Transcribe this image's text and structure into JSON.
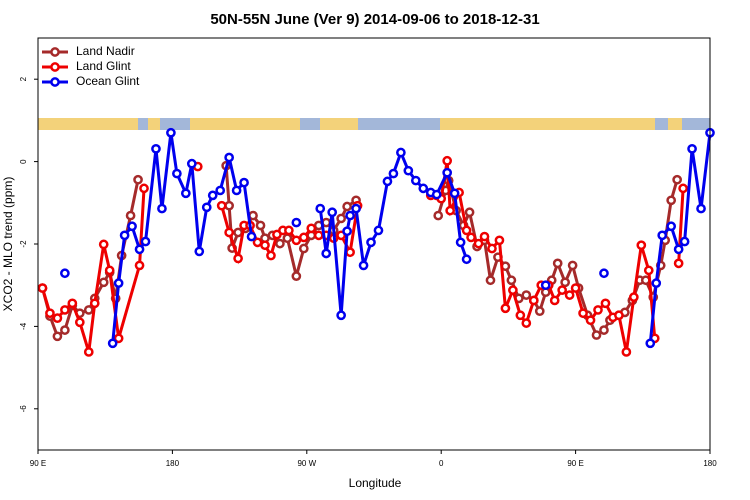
{
  "chart_data": {
    "type": "line",
    "title": "50N-55N June (Ver 9)   2014-09-06 to 2018-12-31",
    "x_label": "Longitude",
    "y_label": "XCO2 - MLO trend (ppm)",
    "xlim": [
      90,
      540
    ],
    "ylim": [
      -7,
      3
    ],
    "xticks": [
      {
        "value": 90,
        "label": "90 E"
      },
      {
        "value": 180,
        "label": "180"
      },
      {
        "value": 270,
        "label": "90 W"
      },
      {
        "value": 360,
        "label": "0"
      },
      {
        "value": 450,
        "label": "90 E"
      },
      {
        "value": 540,
        "label": "180"
      }
    ],
    "yticks": [
      -6,
      -4,
      -2,
      0,
      2
    ],
    "legend": "top-left",
    "series": [
      {
        "name": "Land Nadir",
        "color": "#a52a2a",
        "x": [
          93,
          98,
          103,
          108,
          113,
          118,
          124,
          128,
          134,
          138,
          142,
          146,
          152,
          157,
          null,
          216,
          218,
          220,
          224,
          229,
          234,
          239,
          242,
          247,
          252,
          257,
          263,
          268,
          273,
          278,
          283,
          288,
          293,
          297,
          303,
          null,
          358,
          363,
          365,
          370,
          375,
          379,
          384,
          389,
          393,
          398,
          403,
          407,
          412,
          417,
          422,
          426,
          430,
          434,
          438,
          443,
          448,
          452,
          458,
          464,
          469,
          473,
          479,
          483,
          488,
          493,
          497,
          502,
          507,
          510,
          514,
          518
        ],
        "values": [
          -3.07,
          -3.75,
          -4.24,
          -4.09,
          -3.49,
          -3.68,
          -3.6,
          -3.32,
          -2.93,
          -2.69,
          -3.32,
          -2.28,
          -1.31,
          -0.44,
          null,
          -0.1,
          -1.07,
          -2.1,
          -1.72,
          -1.62,
          -1.31,
          -1.55,
          -1.86,
          -1.79,
          -1.99,
          -1.86,
          -2.78,
          -2.11,
          -1.79,
          -1.55,
          -1.48,
          -1.67,
          -1.38,
          -1.09,
          -0.94,
          null,
          -1.31,
          -0.7,
          -0.46,
          -1.19,
          -1.55,
          -1.23,
          -2.06,
          -1.91,
          -2.88,
          -2.32,
          -2.54,
          -2.88,
          -3.32,
          -3.24,
          -3.37,
          -3.63,
          -3.17,
          -2.88,
          -2.47,
          -2.93,
          -2.52,
          -3.07,
          -3.73,
          -4.21,
          -4.09,
          -3.85,
          -3.73,
          -3.66,
          -3.37,
          -2.88,
          -2.88,
          -3.29,
          -2.52,
          -1.91,
          -0.94,
          -0.44
        ]
      },
      {
        "name": "Land Glint",
        "color": "#ee0000",
        "x": [
          93,
          98,
          103,
          108,
          113,
          118,
          124,
          128,
          134,
          138,
          144,
          158,
          161,
          null,
          197,
          null,
          213,
          218,
          224,
          228,
          232,
          237,
          242,
          246,
          250,
          254,
          258,
          263,
          268,
          273,
          278,
          283,
          288,
          293,
          299,
          304,
          null,
          353,
          357,
          360,
          364,
          366,
          372,
          377,
          380,
          385,
          389,
          394,
          399,
          403,
          408,
          413,
          417,
          422,
          427,
          432,
          436,
          441,
          446,
          450,
          455,
          460,
          465,
          470,
          475,
          479,
          484,
          489,
          494,
          499,
          503,
          null,
          519,
          522
        ],
        "values": [
          -3.07,
          -3.68,
          -3.8,
          -3.6,
          -3.44,
          -3.9,
          -4.62,
          -3.44,
          -2.01,
          -2.64,
          -4.29,
          -2.52,
          -0.65,
          null,
          -0.12,
          null,
          -1.07,
          -1.72,
          -2.35,
          -1.55,
          -1.55,
          -1.96,
          -2.03,
          -2.28,
          -1.77,
          -1.67,
          -1.67,
          -1.91,
          -1.84,
          -1.62,
          -1.79,
          -1.79,
          -1.86,
          -1.79,
          -2.2,
          -1.07,
          null,
          -0.82,
          -0.82,
          -0.9,
          0.02,
          -1.19,
          -0.75,
          -1.67,
          -1.84,
          -1.99,
          -1.82,
          -2.11,
          -1.91,
          -3.56,
          -3.12,
          -3.73,
          -3.92,
          -3.37,
          -3.0,
          -3.0,
          -3.37,
          -3.12,
          -3.24,
          -3.07,
          -3.68,
          -3.85,
          -3.6,
          -3.44,
          -3.78,
          -3.73,
          -4.62,
          -3.29,
          -2.03,
          -2.64,
          -4.29,
          null,
          -2.47,
          -0.65
        ]
      },
      {
        "name": "Ocean Glint",
        "color": "#0000ee",
        "x": [
          108,
          null,
          140,
          144,
          148,
          153,
          158,
          162,
          169,
          173,
          179,
          183,
          189,
          193,
          198,
          203,
          207,
          212,
          218,
          223,
          228,
          233,
          null,
          263,
          null,
          279,
          283,
          287,
          293,
          297,
          299,
          303,
          308,
          313,
          318,
          324,
          328,
          333,
          338,
          343,
          348,
          353,
          357,
          364,
          369,
          373,
          377,
          null,
          430,
          null,
          469,
          null,
          500,
          504,
          508,
          514,
          519,
          523,
          528,
          534,
          540
        ],
        "values": [
          -2.71,
          null,
          -4.41,
          -2.95,
          -1.79,
          -1.57,
          -2.13,
          -1.94,
          0.31,
          -1.14,
          0.7,
          -0.29,
          -0.77,
          -0.05,
          -2.18,
          -1.11,
          -0.82,
          -0.7,
          0.1,
          -0.7,
          -0.51,
          -1.82,
          null,
          -1.48,
          null,
          -1.14,
          -2.23,
          -1.23,
          -3.73,
          -1.69,
          -1.31,
          -1.14,
          -2.52,
          -1.96,
          -1.67,
          -0.48,
          -0.29,
          0.22,
          -0.22,
          -0.46,
          -0.65,
          -0.75,
          -0.8,
          -0.27,
          -0.77,
          -1.96,
          -2.37,
          null,
          -3.0,
          null,
          -2.71,
          null,
          -4.41,
          -2.95,
          -1.79,
          -1.57,
          -2.13,
          -1.94,
          0.31,
          -1.14,
          0.7
        ]
      }
    ]
  }
}
